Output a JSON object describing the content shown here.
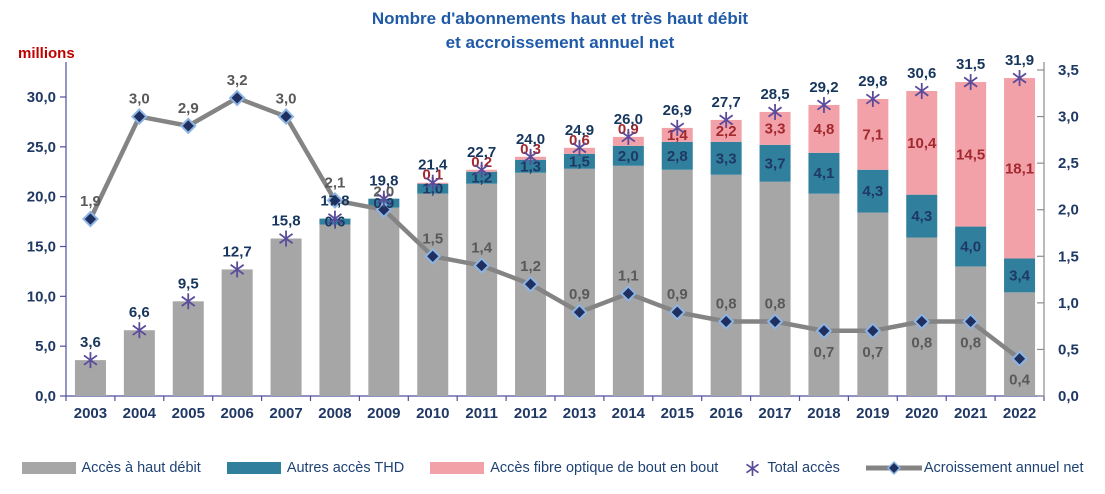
{
  "title": {
    "line1": "Nombre d'abonnements haut et très haut débit",
    "line2": "et accroissement annuel net"
  },
  "axes": {
    "left_unit_label": "millions",
    "left_ticks": [
      "30,0",
      "25,0",
      "20,0",
      "15,0",
      "10,0",
      "5,0",
      "0,0"
    ],
    "right_ticks": [
      "3,5",
      "3,0",
      "2,5",
      "2,0",
      "1,5",
      "1,0",
      "0,5",
      "0,0"
    ]
  },
  "chart_data": {
    "type": "combo: stacked bar (left axis, millions) + line (right axis)",
    "categories": [
      2003,
      2004,
      2005,
      2006,
      2007,
      2008,
      2009,
      2010,
      2011,
      2012,
      2013,
      2014,
      2015,
      2016,
      2017,
      2018,
      2019,
      2020,
      2021,
      2022
    ],
    "ylim_left": [
      0,
      30
    ],
    "ylim_right": [
      0,
      3.5
    ],
    "grid": false,
    "legend_position": "bottom",
    "stacked_series": [
      {
        "key": "hautdebit",
        "name": "Accès à haut débit",
        "color": "#a6a6a6",
        "labeled": false,
        "values": [
          3.6,
          6.6,
          9.5,
          12.7,
          15.8,
          17.2,
          18.9,
          20.3,
          21.3,
          22.4,
          22.8,
          23.1,
          22.7,
          22.2,
          21.5,
          20.3,
          18.4,
          15.9,
          13.0,
          10.4
        ]
      },
      {
        "key": "thd",
        "name": "Autres accès THD",
        "color": "#2f7f9d",
        "labeled": true,
        "values": [
          0,
          0,
          0,
          0,
          0,
          0.6,
          0.9,
          1.0,
          1.2,
          1.3,
          1.5,
          2.0,
          2.8,
          3.3,
          3.7,
          4.1,
          4.3,
          4.3,
          4.0,
          3.4
        ]
      },
      {
        "key": "fibre",
        "name": "Accès fibre optique de bout en bout",
        "color": "#f1a1a7",
        "labeled": true,
        "values": [
          0,
          0,
          0,
          0,
          0,
          0,
          0,
          0.1,
          0.2,
          0.3,
          0.6,
          0.9,
          1.4,
          2.2,
          3.3,
          4.8,
          7.1,
          10.4,
          14.5,
          18.1
        ]
      }
    ],
    "total_series": {
      "key": "total",
      "name": "Total accès",
      "marker": "asterisk",
      "color": "#5b4b9b",
      "label_color": "#17365d",
      "values": [
        3.6,
        6.6,
        9.5,
        12.7,
        15.8,
        17.8,
        19.8,
        21.4,
        22.7,
        24.0,
        24.9,
        26.0,
        26.9,
        27.7,
        28.5,
        29.2,
        29.8,
        30.6,
        31.5,
        31.9
      ]
    },
    "line_series": {
      "key": "croissance",
      "name": "Acroissement annuel net",
      "axis": "right",
      "color": "#848484",
      "marker": "diamond",
      "marker_fill": "#1f3060",
      "marker_outline": "#8db4e2",
      "label_color": "#595959",
      "label_below_years": [
        2018,
        2019,
        2020,
        2021,
        2022
      ],
      "values": [
        1.9,
        3.0,
        2.9,
        3.2,
        3.0,
        2.1,
        2.0,
        1.5,
        1.4,
        1.2,
        0.9,
        1.1,
        0.9,
        0.8,
        0.8,
        0.7,
        0.7,
        0.8,
        0.8,
        0.4
      ]
    }
  }
}
